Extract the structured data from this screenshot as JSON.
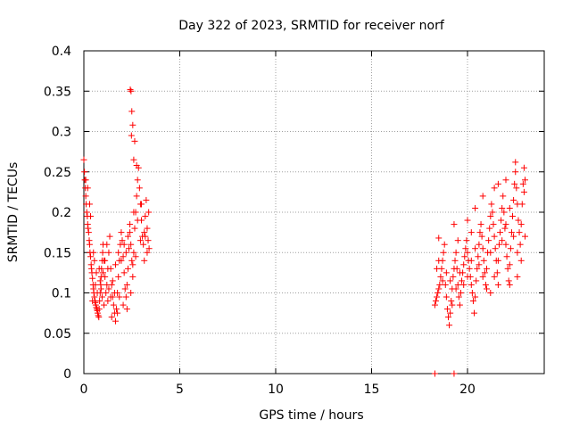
{
  "chart_data": {
    "type": "scatter",
    "title": "Day 322 of 2023, SRMTID for receiver norf",
    "xlabel": "GPS time / hours",
    "ylabel": "SRMTID / TECUs",
    "xlim": [
      0,
      24
    ],
    "ylim": [
      0,
      0.4
    ],
    "xticks": [
      0,
      5,
      10,
      15,
      20
    ],
    "xtick_labels": [
      "0",
      "5",
      "10",
      "15",
      "20"
    ],
    "yticks": [
      0,
      0.05,
      0.1,
      0.15,
      0.2,
      0.25,
      0.3,
      0.35,
      0.4
    ],
    "ytick_labels": [
      "0",
      "0.05",
      "0.1",
      "0.15",
      "0.2",
      "0.25",
      "0.3",
      "0.35",
      "0.4"
    ],
    "grid": true,
    "marker": "+",
    "marker_color": "#ff0000",
    "series": [
      {
        "points": [
          [
            0.0,
            0.265
          ],
          [
            0.03,
            0.25
          ],
          [
            0.05,
            0.24
          ],
          [
            0.08,
            0.23
          ],
          [
            0.1,
            0.22
          ],
          [
            0.12,
            0.21
          ],
          [
            0.15,
            0.2
          ],
          [
            0.18,
            0.195
          ],
          [
            0.2,
            0.185
          ],
          [
            0.22,
            0.18
          ],
          [
            0.25,
            0.175
          ],
          [
            0.28,
            0.165
          ],
          [
            0.3,
            0.16
          ],
          [
            0.32,
            0.15
          ],
          [
            0.35,
            0.145
          ],
          [
            0.38,
            0.135
          ],
          [
            0.4,
            0.13
          ],
          [
            0.42,
            0.125
          ],
          [
            0.45,
            0.118
          ],
          [
            0.48,
            0.11
          ],
          [
            0.5,
            0.105
          ],
          [
            0.52,
            0.1
          ],
          [
            0.55,
            0.095
          ],
          [
            0.58,
            0.09
          ],
          [
            0.6,
            0.088
          ],
          [
            0.62,
            0.085
          ],
          [
            0.65,
            0.082
          ],
          [
            0.68,
            0.08
          ],
          [
            0.7,
            0.078
          ],
          [
            0.72,
            0.075
          ],
          [
            0.75,
            0.072
          ],
          [
            0.78,
            0.07
          ],
          [
            0.8,
            0.08
          ],
          [
            0.82,
            0.09
          ],
          [
            0.85,
            0.1
          ],
          [
            0.88,
            0.11
          ],
          [
            0.9,
            0.12
          ],
          [
            0.92,
            0.13
          ],
          [
            0.95,
            0.14
          ],
          [
            0.98,
            0.15
          ],
          [
            1.0,
            0.16
          ],
          [
            1.05,
            0.14
          ],
          [
            1.1,
            0.12
          ],
          [
            1.15,
            0.1
          ],
          [
            1.2,
            0.11
          ],
          [
            1.25,
            0.13
          ],
          [
            1.3,
            0.15
          ],
          [
            1.35,
            0.17
          ],
          [
            1.4,
            0.13
          ],
          [
            1.45,
            0.11
          ],
          [
            1.5,
            0.095
          ],
          [
            1.55,
            0.085
          ],
          [
            1.6,
            0.075
          ],
          [
            1.65,
            0.065
          ],
          [
            1.7,
            0.08
          ],
          [
            1.75,
            0.1
          ],
          [
            1.8,
            0.12
          ],
          [
            1.85,
            0.14
          ],
          [
            1.9,
            0.16
          ],
          [
            1.95,
            0.175
          ],
          [
            2.0,
            0.165
          ],
          [
            2.05,
            0.145
          ],
          [
            2.1,
            0.125
          ],
          [
            2.15,
            0.105
          ],
          [
            2.2,
            0.095
          ],
          [
            2.25,
            0.11
          ],
          [
            2.3,
            0.13
          ],
          [
            2.35,
            0.155
          ],
          [
            2.4,
            0.175
          ],
          [
            2.45,
            0.16
          ],
          [
            2.5,
            0.14
          ],
          [
            2.55,
            0.12
          ],
          [
            2.6,
            0.15
          ],
          [
            2.65,
            0.18
          ],
          [
            2.7,
            0.2
          ],
          [
            2.75,
            0.22
          ],
          [
            2.8,
            0.24
          ],
          [
            2.85,
            0.255
          ],
          [
            2.9,
            0.23
          ],
          [
            2.95,
            0.21
          ],
          [
            3.0,
            0.19
          ],
          [
            3.05,
            0.17
          ],
          [
            3.1,
            0.16
          ],
          [
            3.15,
            0.175
          ],
          [
            3.2,
            0.195
          ],
          [
            3.25,
            0.215
          ],
          [
            3.3,
            0.18
          ],
          [
            3.35,
            0.165
          ],
          [
            3.4,
            0.155
          ],
          [
            0.35,
            0.195
          ],
          [
            0.45,
            0.09
          ],
          [
            0.6,
            0.11
          ],
          [
            0.7,
            0.1
          ],
          [
            0.8,
            0.13
          ],
          [
            0.95,
            0.095
          ],
          [
            1.05,
            0.085
          ],
          [
            1.25,
            0.09
          ],
          [
            1.45,
            0.07
          ],
          [
            1.6,
            0.1
          ],
          [
            1.75,
            0.075
          ],
          [
            1.85,
            0.095
          ],
          [
            2.05,
            0.085
          ],
          [
            2.25,
            0.08
          ],
          [
            2.45,
            0.1
          ],
          [
            2.55,
            0.135
          ],
          [
            2.7,
            0.145
          ],
          [
            2.95,
            0.165
          ],
          [
            3.15,
            0.14
          ],
          [
            3.3,
            0.15
          ],
          [
            2.42,
            0.352
          ],
          [
            2.46,
            0.35
          ],
          [
            2.5,
            0.325
          ],
          [
            2.55,
            0.308
          ],
          [
            2.48,
            0.295
          ],
          [
            2.65,
            0.288
          ],
          [
            2.6,
            0.265
          ],
          [
            2.75,
            0.258
          ],
          [
            0.1,
            0.24
          ],
          [
            0.2,
            0.23
          ],
          [
            0.3,
            0.21
          ],
          [
            0.5,
            0.15
          ],
          [
            0.55,
            0.14
          ],
          [
            0.65,
            0.125
          ],
          [
            0.85,
            0.115
          ],
          [
            0.9,
            0.105
          ],
          [
            1.0,
            0.125
          ],
          [
            1.1,
            0.14
          ],
          [
            1.2,
            0.16
          ],
          [
            1.3,
            0.105
          ],
          [
            1.4,
            0.095
          ],
          [
            1.5,
            0.115
          ],
          [
            1.65,
            0.135
          ],
          [
            1.8,
            0.15
          ],
          [
            1.95,
            0.14
          ],
          [
            2.1,
            0.16
          ],
          [
            2.2,
            0.15
          ],
          [
            2.3,
            0.17
          ],
          [
            2.4,
            0.185
          ],
          [
            2.6,
            0.2
          ],
          [
            2.8,
            0.19
          ],
          [
            3.0,
            0.21
          ],
          [
            3.2,
            0.17
          ],
          [
            3.38,
            0.2
          ],
          [
            18.3,
            0.0
          ],
          [
            19.3,
            0.0
          ],
          [
            18.3,
            0.085
          ],
          [
            18.35,
            0.09
          ],
          [
            18.4,
            0.095
          ],
          [
            18.45,
            0.1
          ],
          [
            18.5,
            0.105
          ],
          [
            18.55,
            0.11
          ],
          [
            18.6,
            0.12
          ],
          [
            18.65,
            0.13
          ],
          [
            18.7,
            0.14
          ],
          [
            18.75,
            0.15
          ],
          [
            18.8,
            0.16
          ],
          [
            18.85,
            0.11
          ],
          [
            18.9,
            0.095
          ],
          [
            18.95,
            0.08
          ],
          [
            19.0,
            0.07
          ],
          [
            19.05,
            0.06
          ],
          [
            19.1,
            0.075
          ],
          [
            19.15,
            0.09
          ],
          [
            19.2,
            0.105
          ],
          [
            19.25,
            0.12
          ],
          [
            19.3,
            0.13
          ],
          [
            19.35,
            0.14
          ],
          [
            19.4,
            0.15
          ],
          [
            19.45,
            0.13
          ],
          [
            19.5,
            0.11
          ],
          [
            19.55,
            0.095
          ],
          [
            19.6,
            0.085
          ],
          [
            19.65,
            0.1
          ],
          [
            19.7,
            0.115
          ],
          [
            19.75,
            0.125
          ],
          [
            19.8,
            0.135
          ],
          [
            19.85,
            0.145
          ],
          [
            19.9,
            0.155
          ],
          [
            19.95,
            0.165
          ],
          [
            20.0,
            0.15
          ],
          [
            20.05,
            0.14
          ],
          [
            20.1,
            0.13
          ],
          [
            20.15,
            0.12
          ],
          [
            20.2,
            0.11
          ],
          [
            20.25,
            0.1
          ],
          [
            20.3,
            0.09
          ],
          [
            20.35,
            0.075
          ],
          [
            20.4,
            0.095
          ],
          [
            20.45,
            0.115
          ],
          [
            20.5,
            0.13
          ],
          [
            20.55,
            0.145
          ],
          [
            20.6,
            0.16
          ],
          [
            20.65,
            0.175
          ],
          [
            20.7,
            0.185
          ],
          [
            20.75,
            0.17
          ],
          [
            20.8,
            0.155
          ],
          [
            20.85,
            0.14
          ],
          [
            20.9,
            0.125
          ],
          [
            20.95,
            0.11
          ],
          [
            21.0,
            0.13
          ],
          [
            21.05,
            0.15
          ],
          [
            21.1,
            0.165
          ],
          [
            21.15,
            0.18
          ],
          [
            21.2,
            0.195
          ],
          [
            21.25,
            0.21
          ],
          [
            21.3,
            0.2
          ],
          [
            21.35,
            0.185
          ],
          [
            21.4,
            0.17
          ],
          [
            21.45,
            0.155
          ],
          [
            21.5,
            0.14
          ],
          [
            21.55,
            0.125
          ],
          [
            21.6,
            0.14
          ],
          [
            21.65,
            0.16
          ],
          [
            21.7,
            0.175
          ],
          [
            21.75,
            0.19
          ],
          [
            21.8,
            0.205
          ],
          [
            21.85,
            0.22
          ],
          [
            21.9,
            0.2
          ],
          [
            21.95,
            0.18
          ],
          [
            22.0,
            0.16
          ],
          [
            22.05,
            0.145
          ],
          [
            22.1,
            0.13
          ],
          [
            22.15,
            0.115
          ],
          [
            22.2,
            0.135
          ],
          [
            22.25,
            0.155
          ],
          [
            22.3,
            0.175
          ],
          [
            22.35,
            0.195
          ],
          [
            22.4,
            0.215
          ],
          [
            22.45,
            0.235
          ],
          [
            22.5,
            0.25
          ],
          [
            22.55,
            0.23
          ],
          [
            22.6,
            0.21
          ],
          [
            22.65,
            0.19
          ],
          [
            22.7,
            0.175
          ],
          [
            22.75,
            0.16
          ],
          [
            22.8,
            0.185
          ],
          [
            22.85,
            0.21
          ],
          [
            22.9,
            0.235
          ],
          [
            22.95,
            0.255
          ],
          [
            23.0,
            0.24
          ],
          [
            18.4,
            0.13
          ],
          [
            18.5,
            0.14
          ],
          [
            18.7,
            0.115
          ],
          [
            18.9,
            0.125
          ],
          [
            19.1,
            0.115
          ],
          [
            19.2,
            0.085
          ],
          [
            19.4,
            0.105
          ],
          [
            19.6,
            0.125
          ],
          [
            19.8,
            0.11
          ],
          [
            20.0,
            0.12
          ],
          [
            20.2,
            0.14
          ],
          [
            20.4,
            0.155
          ],
          [
            20.6,
            0.135
          ],
          [
            20.8,
            0.12
          ],
          [
            21.0,
            0.105
          ],
          [
            21.2,
            0.15
          ],
          [
            21.4,
            0.12
          ],
          [
            21.6,
            0.11
          ],
          [
            21.8,
            0.165
          ],
          [
            22.0,
            0.185
          ],
          [
            22.2,
            0.205
          ],
          [
            22.4,
            0.17
          ],
          [
            22.6,
            0.15
          ],
          [
            22.8,
            0.14
          ],
          [
            23.0,
            0.17
          ],
          [
            19.3,
            0.185
          ],
          [
            19.5,
            0.165
          ],
          [
            20.0,
            0.19
          ],
          [
            20.4,
            0.205
          ],
          [
            20.8,
            0.22
          ],
          [
            21.4,
            0.23
          ],
          [
            21.6,
            0.235
          ],
          [
            22.0,
            0.24
          ],
          [
            22.5,
            0.262
          ],
          [
            22.95,
            0.225
          ],
          [
            18.5,
            0.168
          ],
          [
            20.2,
            0.175
          ],
          [
            21.2,
            0.1
          ],
          [
            22.6,
            0.12
          ],
          [
            22.2,
            0.11
          ]
        ]
      }
    ]
  }
}
